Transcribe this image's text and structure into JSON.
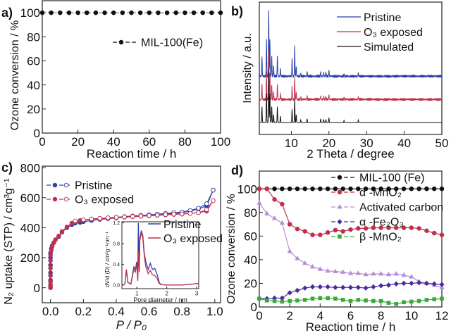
{
  "chart_data": [
    {
      "panel": "a)",
      "type": "line",
      "xlabel": "Reaction time / h",
      "ylabel": "Ozone conversion / %",
      "xlim": [
        0,
        100
      ],
      "ylim": [
        0,
        110
      ],
      "xticks": [
        "0",
        "20",
        "40",
        "60",
        "80",
        "100"
      ],
      "yticks": [
        "0",
        "20",
        "40",
        "60",
        "80",
        "100"
      ],
      "legend_position": "top-right",
      "series": [
        {
          "name": "MIL-100(Fe)",
          "color": "#111111",
          "marker": "circle",
          "x": [
            0,
            5,
            10,
            15,
            20,
            25,
            30,
            35,
            40,
            45,
            50,
            55,
            60,
            65,
            70,
            75,
            80,
            85,
            90,
            95,
            100
          ],
          "y": [
            100,
            100,
            100,
            100,
            100,
            100,
            100,
            100,
            100,
            100,
            100,
            100,
            100,
            100,
            100,
            100,
            100,
            100,
            100,
            100,
            100
          ]
        }
      ]
    },
    {
      "panel": "b)",
      "type": "line",
      "xlabel": "2 Theta / degree",
      "ylabel": "Intensity / a.u.",
      "xlim": [
        1.5,
        50
      ],
      "xticks": [
        "10",
        "20",
        "30",
        "40",
        "50"
      ],
      "legend_position": "top-right",
      "series": [
        {
          "name": "Pristine",
          "color": "#2a3fa8",
          "offset": 0.44,
          "scale": 0.5
        },
        {
          "name": "O₃ exposed",
          "color": "#c0304a",
          "offset": 0.265,
          "scale": 0.37
        },
        {
          "name": "Simulated",
          "color": "#111111",
          "offset": 0.09,
          "scale": 0.4
        }
      ],
      "peaks_2theta": [
        2.2,
        3.4,
        4.0,
        4.3,
        4.8,
        5.3,
        6.3,
        7.1,
        10.2,
        10.9,
        11.3,
        12.5,
        14.2,
        17.8,
        18.6,
        19.2,
        20.0,
        24.0,
        27.8
      ],
      "peaks_relative_intensity": [
        0.3,
        0.55,
        1.0,
        0.55,
        0.3,
        0.15,
        0.3,
        0.12,
        0.25,
        0.45,
        0.15,
        0.05,
        0.07,
        0.07,
        0.06,
        0.06,
        0.09,
        0.04,
        0.05
      ]
    },
    {
      "panel": "c)",
      "type": "line",
      "xlabel": "P / P₀",
      "ylabel": "N₂ uptake (STP) / cm³g⁻¹",
      "xlim": [
        -0.05,
        1.035
      ],
      "ylim": [
        -100,
        810
      ],
      "xticks": [
        "0.0",
        "0.2",
        "0.4",
        "0.6",
        "0.8",
        "1.0"
      ],
      "yticks": [
        "0",
        "200",
        "400",
        "600",
        "800"
      ],
      "legend_position": "top-left",
      "series": [
        {
          "name": "Pristine",
          "color": "#2a3fa8",
          "x": [
            0,
            0,
            0,
            0,
            0,
            0,
            0,
            0.005,
            0.01,
            0.02,
            0.03,
            0.05,
            0.07,
            0.1,
            0.13,
            0.15,
            0.18,
            0.2,
            0.25,
            0.3,
            0.35,
            0.4,
            0.45,
            0.5,
            0.55,
            0.6,
            0.65,
            0.7,
            0.75,
            0.8,
            0.85,
            0.9,
            0.95,
            0.99
          ],
          "y": [
            0,
            20,
            50,
            100,
            150,
            200,
            230,
            260,
            280,
            300,
            320,
            340,
            370,
            400,
            420,
            430,
            435,
            440,
            448,
            455,
            460,
            465,
            470,
            475,
            478,
            482,
            485,
            490,
            495,
            500,
            510,
            525,
            545,
            650
          ],
          "desorption_x": [
            0.99,
            0.95,
            0.9,
            0.85,
            0.8,
            0.75,
            0.7,
            0.65,
            0.6,
            0.55,
            0.5,
            0.45,
            0.4,
            0.35,
            0.3,
            0.25,
            0.2,
            0.15
          ],
          "desorption_y": [
            650,
            560,
            530,
            515,
            505,
            500,
            495,
            490,
            486,
            482,
            478,
            474,
            470,
            466,
            462,
            458,
            452,
            440
          ]
        },
        {
          "name": "O₃ exposed",
          "color": "#c0304a",
          "x": [
            0,
            0,
            0,
            0,
            0,
            0,
            0,
            0.005,
            0.01,
            0.02,
            0.03,
            0.05,
            0.07,
            0.1,
            0.13,
            0.15,
            0.18,
            0.2,
            0.25,
            0.3,
            0.35,
            0.4,
            0.45,
            0.5,
            0.55,
            0.6,
            0.65,
            0.7,
            0.75,
            0.8,
            0.85,
            0.9,
            0.95,
            0.99
          ],
          "y": [
            0,
            15,
            40,
            80,
            130,
            180,
            220,
            250,
            275,
            300,
            320,
            345,
            375,
            405,
            430,
            440,
            448,
            452,
            456,
            460,
            463,
            466,
            470,
            473,
            476,
            479,
            482,
            485,
            488,
            490,
            495,
            500,
            510,
            580
          ],
          "desorption_x": [
            0.99,
            0.95,
            0.9,
            0.85,
            0.8,
            0.75,
            0.7,
            0.65,
            0.6,
            0.55,
            0.5,
            0.45,
            0.4,
            0.35,
            0.3,
            0.25,
            0.2,
            0.15
          ],
          "desorption_y": [
            580,
            520,
            500,
            495,
            492,
            490,
            487,
            484,
            481,
            478,
            475,
            472,
            469,
            466,
            462,
            458,
            453,
            445
          ]
        }
      ],
      "inset": {
        "type": "line",
        "xlabel": "Pore diameter / nm",
        "ylabel": "dV/d (D) / cm³g⁻¹nm⁻¹",
        "xlim": [
          0.5,
          3.07
        ],
        "ylim": [
          -0.07,
          1.22
        ],
        "xticks": [
          "1",
          "2",
          "3"
        ],
        "yticks": [
          "0.0",
          "0.4",
          "0.8",
          "1.2"
        ],
        "legend_position": "top-right",
        "series": [
          {
            "name": "Pristine",
            "color": "#2a3fa8",
            "x": [
              0.55,
              0.6,
              0.65,
              0.7,
              0.8,
              0.9,
              0.95,
              1.0,
              1.03,
              1.05,
              1.08,
              1.1,
              1.15,
              1.2,
              1.25,
              1.3,
              1.38,
              1.45,
              1.52,
              1.6,
              1.68,
              1.75,
              1.8,
              2.0,
              2.5,
              2.9,
              3.05
            ],
            "y": [
              0,
              0.02,
              0.28,
              0.05,
              0.02,
              0.35,
              0.3,
              0.45,
              0.1,
              1.2,
              0.3,
              0.9,
              1.05,
              0.95,
              0.6,
              0.45,
              0.3,
              0.42,
              0.3,
              0.32,
              0.2,
              0.05,
              0.01,
              0,
              0,
              0.02,
              0.03
            ]
          },
          {
            "name": "O₃ exposed",
            "color": "#c0304a",
            "x": [
              0.55,
              0.6,
              0.65,
              0.7,
              0.8,
              0.9,
              0.95,
              1.0,
              1.03,
              1.05,
              1.08,
              1.1,
              1.15,
              1.2,
              1.25,
              1.3,
              1.38,
              1.45,
              1.52,
              1.6,
              1.68,
              1.75,
              1.8,
              2.0,
              2.5,
              2.9,
              3.05
            ],
            "y": [
              0,
              0.02,
              0.3,
              0.05,
              0.02,
              0.3,
              0.25,
              0.4,
              0.08,
              0.65,
              0.25,
              0.85,
              1.02,
              0.9,
              0.55,
              0.35,
              0.22,
              0.28,
              0.2,
              0.18,
              0.12,
              0.03,
              0.01,
              0,
              0,
              0.02,
              0.03
            ]
          }
        ]
      }
    },
    {
      "panel": "d)",
      "type": "line",
      "xlabel": "Reaction time / h",
      "ylabel": "Ozone conversion / %",
      "xlim": [
        0,
        12
      ],
      "ylim": [
        0,
        115
      ],
      "xticks": [
        "0",
        "2",
        "4",
        "6",
        "8",
        "10",
        "12"
      ],
      "yticks": [
        "0",
        "20",
        "40",
        "60",
        "80",
        "100"
      ],
      "legend_position": "top-right",
      "x": [
        0,
        0.5,
        1,
        1.5,
        2,
        2.5,
        3,
        3.5,
        4,
        4.5,
        5,
        5.5,
        6,
        6.5,
        7,
        7.5,
        8,
        8.5,
        9,
        9.5,
        10,
        10.5,
        11,
        11.5,
        12
      ],
      "series": [
        {
          "name": "MIL-100 (Fe)",
          "color": "#111111",
          "marker": "circle",
          "values": [
            100,
            100,
            100,
            100,
            100,
            100,
            100,
            100,
            100,
            100,
            100,
            100,
            100,
            100,
            100,
            100,
            100,
            100,
            100,
            100,
            100,
            100,
            100,
            100,
            100
          ]
        },
        {
          "name": "α -MnO₂",
          "color": "#c0304a",
          "marker": "circle",
          "values": [
            100,
            100,
            91,
            87,
            70,
            66,
            64,
            61,
            61,
            63,
            65,
            64,
            65.5,
            66.5,
            66.5,
            67,
            67,
            67,
            67,
            67,
            67,
            66.5,
            64.5,
            62.5,
            61
          ]
        },
        {
          "name": "Activated carbon",
          "color": "#b58fd6",
          "marker": "triangle",
          "values": [
            88,
            79,
            75,
            71,
            47,
            41,
            37,
            34,
            32,
            30.5,
            30,
            29.5,
            28.5,
            28.5,
            27.5,
            28,
            28,
            27.5,
            28,
            27,
            25.5,
            21.5,
            20,
            18.5,
            16.5
          ]
        },
        {
          "name": "α -Fe₂O₃",
          "color": "#4a2aa0",
          "marker": "diamond",
          "values": [
            7,
            7,
            7.5,
            7.5,
            12,
            14,
            16,
            17,
            17,
            17,
            16.5,
            16.5,
            16.5,
            16.5,
            16,
            17,
            18,
            18.5,
            19.5,
            20,
            20,
            20.5,
            20,
            19.5,
            19
          ]
        },
        {
          "name": "β -MnO₂",
          "color": "#3aa83a",
          "marker": "square",
          "values": [
            7,
            5.5,
            5,
            4.5,
            5,
            5.5,
            6,
            7,
            7.5,
            7.5,
            7,
            6,
            5,
            6,
            5.5,
            5,
            5,
            3.5,
            2.5,
            4,
            4.5,
            5,
            6,
            6.5,
            7
          ]
        }
      ]
    }
  ]
}
